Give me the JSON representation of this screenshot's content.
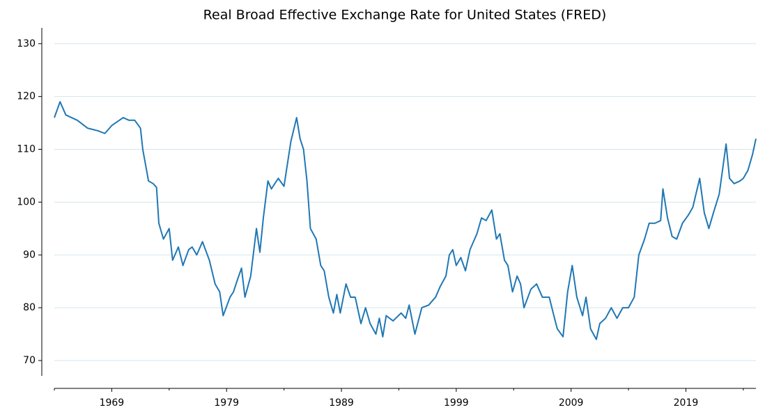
{
  "chart_data": {
    "type": "line",
    "title": "Real Broad Effective Exchange Rate for United States (FRED)",
    "x": [
      1964.0,
      1964.5,
      1965.0,
      1966.0,
      1966.9,
      1967.8,
      1968.4,
      1969.0,
      1970.0,
      1970.5,
      1971.0,
      1971.5,
      1971.7,
      1972.2,
      1972.6,
      1972.9,
      1973.1,
      1973.5,
      1974.0,
      1974.3,
      1974.8,
      1975.2,
      1975.7,
      1976.0,
      1976.4,
      1976.9,
      1977.5,
      1978.0,
      1978.4,
      1978.7,
      1979.3,
      1979.6,
      1979.9,
      1980.3,
      1980.6,
      1981.1,
      1981.6,
      1981.9,
      1982.2,
      1982.6,
      1982.9,
      1983.5,
      1984.0,
      1984.6,
      1985.1,
      1985.4,
      1985.7,
      1986.0,
      1986.3,
      1986.8,
      1987.2,
      1987.5,
      1987.9,
      1988.3,
      1988.6,
      1988.9,
      1989.4,
      1989.8,
      1990.2,
      1990.7,
      1991.1,
      1991.5,
      1992.0,
      1992.3,
      1992.6,
      1992.9,
      1993.5,
      1994.2,
      1994.6,
      1994.9,
      1995.4,
      1996.0,
      1996.6,
      1997.2,
      1997.6,
      1998.1,
      1998.4,
      1998.7,
      1999.0,
      1999.4,
      1999.8,
      2000.2,
      2000.8,
      2001.2,
      2001.6,
      2002.1,
      2002.5,
      2002.8,
      2003.2,
      2003.5,
      2003.9,
      2004.3,
      2004.6,
      2004.9,
      2005.5,
      2006.0,
      2006.5,
      2007.1,
      2007.5,
      2007.8,
      2008.3,
      2008.7,
      2009.1,
      2009.5,
      2010.0,
      2010.3,
      2010.7,
      2011.2,
      2011.5,
      2012.0,
      2012.5,
      2013.0,
      2013.5,
      2014.0,
      2014.5,
      2014.9,
      2015.4,
      2015.8,
      2016.3,
      2016.8,
      2017.0,
      2017.4,
      2017.8,
      2018.2,
      2018.7,
      2019.2,
      2019.6,
      2020.2,
      2020.6,
      2021.0,
      2021.4,
      2021.9,
      2022.5,
      2022.8,
      2023.2,
      2023.7,
      2024.0,
      2024.4,
      2024.8,
      2025.1
    ],
    "values": [
      116,
      119,
      116.5,
      115.5,
      114,
      113.5,
      113,
      114.5,
      116,
      115.5,
      115.5,
      114,
      110,
      104,
      103.5,
      102.8,
      96,
      93,
      95,
      89,
      91.5,
      88,
      91,
      91.5,
      90,
      92.5,
      89,
      84.5,
      83,
      78.5,
      82,
      83,
      85,
      87.5,
      82,
      86,
      95,
      90.5,
      97,
      104,
      102.5,
      104.5,
      103,
      111.5,
      116,
      112,
      110,
      104,
      95,
      93,
      88,
      87,
      82,
      79,
      82.5,
      79,
      84.5,
      82,
      82,
      77,
      80,
      77,
      75,
      78,
      74.5,
      78.5,
      77.5,
      79,
      78,
      80.5,
      75,
      80,
      80.5,
      82,
      84,
      86,
      90,
      91,
      88,
      89.5,
      87,
      91,
      94,
      97,
      96.5,
      98.5,
      93,
      94,
      89,
      88,
      83,
      86,
      84.5,
      80,
      83.5,
      84.5,
      82,
      82,
      78.5,
      76,
      74.5,
      83,
      88,
      82,
      78.5,
      82,
      76,
      74,
      77,
      78,
      80,
      78,
      80,
      80,
      82,
      90,
      93,
      96,
      96,
      96.5,
      102.5,
      97,
      93.5,
      93,
      96,
      97.5,
      99,
      104.5,
      98,
      95,
      98,
      101.5,
      111,
      104.5,
      103.5,
      104,
      104.5,
      106,
      109,
      112
    ],
    "color": "#1f77b4",
    "xlim": [
      1964.0,
      2025.1
    ],
    "xticks": [
      1969,
      1979,
      1989,
      1999,
      2009,
      2019
    ],
    "xminor_ticks": [
      1964,
      1974,
      1984,
      1994,
      2004,
      2014,
      2024
    ],
    "ylim": [
      67.1,
      133.0
    ],
    "yticks": [
      70,
      80,
      90,
      100,
      110,
      120,
      130
    ],
    "grid": true,
    "grid_color": "#d3e4ec"
  }
}
